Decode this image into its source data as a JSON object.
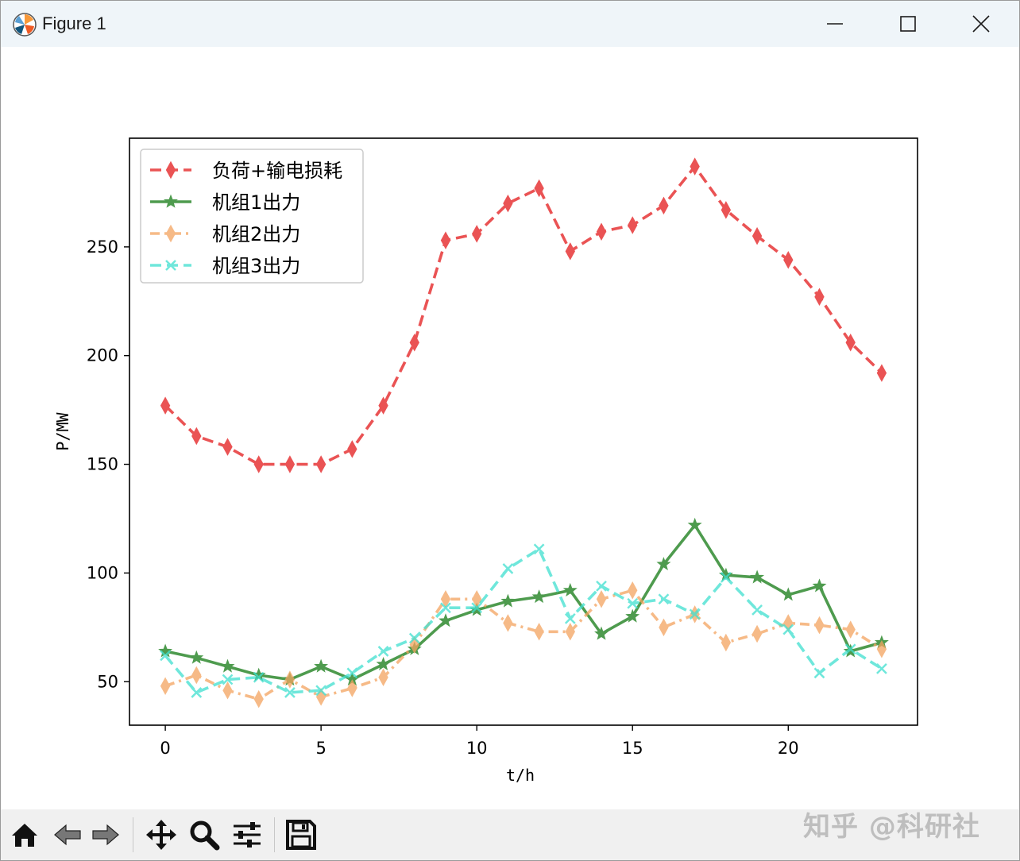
{
  "window": {
    "title": "Figure 1"
  },
  "colors": {
    "load": "#e31a1c",
    "unit1": "#137a13",
    "unit2": "#f4a460",
    "unit3": "#40e0d0"
  },
  "icons": {
    "app": "matplotlib-icon",
    "minimize": "minimize-icon",
    "maximize": "maximize-icon",
    "close": "close-icon",
    "home": "home-icon",
    "back": "back-arrow-icon",
    "forward": "forward-arrow-icon",
    "pan": "move-arrows-icon",
    "zoom": "magnifier-icon",
    "configure": "sliders-icon",
    "save": "floppy-disk-icon"
  },
  "watermark": "知乎 @科研社",
  "chart_data": {
    "type": "line",
    "title": "",
    "xlabel": "t/h",
    "ylabel": "P/MW",
    "xlim": [
      -1.15,
      24.15
    ],
    "ylim": [
      30,
      300
    ],
    "xticks": [
      0,
      5,
      10,
      15,
      20
    ],
    "yticks": [
      50,
      100,
      150,
      200,
      250
    ],
    "grid": false,
    "legend_position": "top-left",
    "x": [
      0,
      1,
      2,
      3,
      4,
      5,
      6,
      7,
      8,
      9,
      10,
      11,
      12,
      13,
      14,
      15,
      16,
      17,
      18,
      19,
      20,
      21,
      22,
      23
    ],
    "series": [
      {
        "name": "负荷+输电损耗",
        "style": "dashed",
        "marker": "diamond",
        "color": "#e31a1c",
        "values": [
          177,
          163,
          158,
          150,
          150,
          150,
          157,
          177,
          206,
          253,
          256,
          270,
          277,
          248,
          257,
          260,
          269,
          287,
          267,
          255,
          244,
          227,
          206,
          192
        ]
      },
      {
        "name": "机组1出力",
        "style": "solid",
        "marker": "star",
        "color": "#137a13",
        "values": [
          64,
          61,
          57,
          53,
          51,
          57,
          51,
          58,
          65,
          78,
          83,
          87,
          89,
          92,
          72,
          80,
          104,
          122,
          99,
          98,
          90,
          94,
          64,
          68
        ]
      },
      {
        "name": "机组2出力",
        "style": "dashdot",
        "marker": "diamond",
        "color": "#f4a460",
        "values": [
          48,
          53,
          46,
          42,
          51,
          43,
          47,
          52,
          67,
          88,
          88,
          77,
          73,
          73,
          88,
          92,
          75,
          81,
          68,
          72,
          77,
          76,
          74,
          65
        ]
      },
      {
        "name": "机组3出力",
        "style": "dashed",
        "marker": "x",
        "color": "#40e0d0",
        "values": [
          62,
          45,
          51,
          52,
          45,
          46,
          54,
          64,
          70,
          84,
          84,
          102,
          111,
          79,
          94,
          86,
          88,
          81,
          98,
          83,
          74,
          54,
          65,
          56
        ]
      }
    ]
  }
}
